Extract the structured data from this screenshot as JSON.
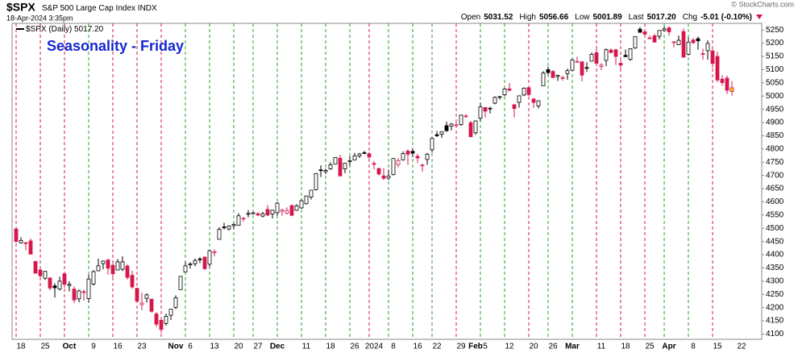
{
  "header": {
    "symbol": "$SPX",
    "name": "S&P 500 Large Cap Index",
    "exchange": "INDX",
    "date": "18-Apr-2024 3:35pm",
    "copyright": "© StockCharts.com",
    "quote": [
      {
        "label": "Open",
        "value": "5031.52"
      },
      {
        "label": "High",
        "value": "5056.66"
      },
      {
        "label": "Low",
        "value": "5001.89"
      },
      {
        "label": "Last",
        "value": "5017.20"
      },
      {
        "label": "Chg",
        "value": "-5.01 (-0.10%)"
      }
    ]
  },
  "chart_data": {
    "type": "candlestick",
    "title": "Seasonality - Friday",
    "series_name": "$SPX (Daily)",
    "last_label": "5017.20",
    "up_color": "#000000",
    "down_color": "#d6174c",
    "last_color": "#f2d21b",
    "friday_up_color": "#2e9e2e",
    "friday_down_color": "#d6174c",
    "categories": [
      null,
      "18",
      null,
      null,
      null,
      null,
      "25",
      null,
      null,
      null,
      null,
      "Oct",
      null,
      null,
      null,
      null,
      "9",
      null,
      null,
      null,
      null,
      "16",
      null,
      null,
      null,
      null,
      "23",
      null,
      null,
      null,
      null,
      null,
      null,
      "Nov",
      null,
      null,
      "6",
      null,
      null,
      null,
      null,
      "13",
      null,
      null,
      null,
      null,
      "20",
      null,
      null,
      null,
      "27",
      null,
      null,
      null,
      "Dec",
      null,
      null,
      null,
      null,
      null,
      "11",
      null,
      null,
      null,
      null,
      "18",
      null,
      null,
      null,
      null,
      "26",
      null,
      null,
      null,
      "2024",
      null,
      null,
      null,
      "8",
      null,
      null,
      null,
      null,
      "16",
      null,
      null,
      null,
      "22",
      null,
      null,
      null,
      null,
      "29",
      null,
      null,
      "Feb",
      null,
      "5",
      null,
      null,
      null,
      null,
      "12",
      null,
      null,
      null,
      null,
      "20",
      null,
      null,
      null,
      "26",
      null,
      null,
      null,
      "Mar",
      null,
      null,
      null,
      null,
      null,
      "11",
      null,
      null,
      null,
      null,
      "18",
      null,
      null,
      null,
      null,
      "25",
      null,
      null,
      null,
      "Apr",
      null,
      null,
      null,
      null,
      "8",
      null,
      null,
      null,
      null,
      "15",
      null,
      null,
      null,
      null,
      "22",
      null,
      null,
      null
    ],
    "open": [
      4497,
      4445,
      4445,
      4452,
      4375,
      4342,
      4311,
      4312,
      4282,
      4270,
      4328,
      4284,
      4270,
      4233,
      4260,
      4234,
      4289,
      4339,
      4366,
      4380,
      4360,
      4342,
      4345,
      4357,
      4322,
      4273,
      4211,
      4235,
      4232,
      4176,
      4152,
      4140,
      4171,
      4201,
      4268,
      4335,
      4365,
      4366,
      4384,
      4391,
      4364,
      4407,
      4458,
      4505,
      4497,
      4510,
      4511,
      4538,
      4553,
      4555,
      4555,
      4546,
      4571,
      4554,
      4559,
      4564,
      4557,
      4586,
      4568,
      4577,
      4593,
      4618,
      4646,
      4721,
      4714,
      4725,
      4743,
      4765,
      4725,
      4753,
      4758,
      4774,
      4786,
      4782,
      4745,
      4726,
      4698,
      4690,
      4703,
      4741,
      4759,
      4792,
      4791,
      4772,
      4739,
      4760,
      4797,
      4854,
      4856,
      4888,
      4886,
      4888,
      4892,
      4925,
      4899,
      4861,
      4916,
      4957,
      4951,
      4973,
      4996,
      5005,
      5027,
      4967,
      4976,
      5004,
      5032,
      4989,
      4963,
      5039,
      5100,
      5093,
      5074,
      5068,
      5085,
      5098,
      5131,
      5130,
      5108,
      5132,
      5164,
      5112,
      5135,
      5174,
      5175,
      5124,
      5154,
      5139,
      5182,
      5253,
      5243,
      5220,
      5228,
      5226,
      5248,
      5258,
      5204,
      5194,
      5244,
      5158,
      5212,
      5217,
      5158,
      5172,
      5171,
      5150,
      5064,
      5068,
      5031.52,
      null,
      null,
      null,
      null,
      null
    ],
    "high": [
      4497,
      4466,
      4449,
      4461,
      4375,
      4357,
      4339,
      4314,
      4292,
      4317,
      4333,
      4300,
      4281,
      4268,
      4268,
      4324,
      4341,
      4385,
      4378,
      4385,
      4377,
      4384,
      4394,
      4364,
      4339,
      4275,
      4256,
      4254,
      4232,
      4183,
      4156,
      4177,
      4194,
      4246,
      4319,
      4374,
      4372,
      4386,
      4391,
      4393,
      4418,
      4421,
      4504,
      4521,
      4511,
      4520,
      4557,
      4542,
      4569,
      4560,
      4561,
      4562,
      4587,
      4570,
      4599,
      4574,
      4579,
      4590,
      4591,
      4610,
      4623,
      4644,
      4709,
      4738,
      4726,
      4749,
      4768,
      4778,
      4748,
      4772,
      4785,
      4785,
      4793,
      4788,
      4754,
      4729,
      4727,
      4722,
      4764,
      4766,
      4791,
      4799,
      4802,
      4782,
      4744,
      4785,
      4842,
      4868,
      4866,
      4903,
      4898,
      4907,
      4929,
      4932,
      4906,
      4907,
      4975,
      4957,
      4960,
      4999,
      5000,
      5031,
      5049,
      4971,
      5002,
      5033,
      5039,
      4993,
      4984,
      5094,
      5111,
      5098,
      5081,
      5077,
      5104,
      5140,
      5149,
      5130,
      5128,
      5165,
      5190,
      5125,
      5180,
      5180,
      5179,
      5136,
      5176,
      5180,
      5225,
      5261,
      5246,
      5229,
      5235,
      5249,
      5264,
      5264,
      5208,
      5229,
      5256,
      5222,
      5219,
      5225,
      5179,
      5211,
      5176,
      5168,
      5079,
      5077,
      5056.66,
      null,
      null,
      null,
      null,
      null
    ],
    "low": [
      4447,
      4442,
      4417,
      4402,
      4329,
      4316,
      4305,
      4265,
      4238,
      4265,
      4275,
      4261,
      4217,
      4220,
      4226,
      4219,
      4284,
      4339,
      4345,
      4325,
      4311,
      4342,
      4338,
      4306,
      4271,
      4223,
      4190,
      4219,
      4181,
      4127,
      4104,
      4132,
      4153,
      4194,
      4268,
      4334,
      4347,
      4356,
      4368,
      4343,
      4353,
      4394,
      4458,
      4495,
      4492,
      4496,
      4511,
      4525,
      4541,
      4552,
      4546,
      4541,
      4546,
      4537,
      4547,
      4547,
      4552,
      4546,
      4566,
      4574,
      4590,
      4609,
      4643,
      4694,
      4705,
      4721,
      4743,
      4697,
      4708,
      4736,
      4758,
      4766,
      4780,
      4751,
      4723,
      4700,
      4683,
      4682,
      4700,
      4731,
      4756,
      4740,
      4769,
      4747,
      4714,
      4740,
      4786,
      4845,
      4842,
      4865,
      4870,
      4881,
      4887,
      4917,
      4846,
      4853,
      4906,
      4919,
      4934,
      4969,
      4987,
      4999,
      5018,
      4920,
      4956,
      5000,
      4999,
      4955,
      4953,
      5039,
      5081,
      5069,
      5057,
      5058,
      5062,
      5094,
      5127,
      5056,
      5091,
      5131,
      5117,
      5098,
      5113,
      5161,
      5118,
      5104,
      5148,
      5133,
      5179,
      5241,
      5229,
      5216,
      5203,
      5214,
      5245,
      5229,
      5184,
      5194,
      5146,
      5154,
      5197,
      5175,
      5138,
      5138,
      5107,
      5053,
      5039,
      5008,
      5001.89,
      null,
      null,
      null,
      null,
      null
    ],
    "close": [
      4450,
      4454,
      4444,
      4402,
      4330,
      4320,
      4337,
      4274,
      4275,
      4300,
      4288,
      4288,
      4229,
      4263,
      4258,
      4308,
      4336,
      4358,
      4376,
      4349,
      4328,
      4373,
      4373,
      4314,
      4278,
      4224,
      4217,
      4248,
      4186,
      4137,
      4117,
      4167,
      4194,
      4237,
      4318,
      4358,
      4365,
      4378,
      4383,
      4347,
      4415,
      4411,
      4496,
      4503,
      4508,
      4514,
      4547,
      4538,
      4556,
      4559,
      4550,
      4555,
      4550,
      4568,
      4595,
      4569,
      4567,
      4549,
      4585,
      4604,
      4622,
      4644,
      4707,
      4719,
      4719,
      4740,
      4768,
      4698,
      4746,
      4755,
      4774,
      4781,
      4783,
      4770,
      4743,
      4705,
      4689,
      4697,
      4764,
      4756,
      4783,
      4780,
      4784,
      4766,
      4739,
      4780,
      4840,
      4850,
      4865,
      4869,
      4894,
      4891,
      4928,
      4925,
      4846,
      4906,
      4959,
      4943,
      4954,
      4995,
      4998,
      5027,
      5022,
      4953,
      5001,
      5030,
      5006,
      4976,
      4982,
      5087,
      5089,
      5070,
      5078,
      5070,
      5096,
      5137,
      5131,
      5079,
      5105,
      5158,
      5124,
      5117,
      5175,
      5165,
      5150,
      5117,
      5149,
      5179,
      5225,
      5241,
      5234,
      5218,
      5204,
      5248,
      5254,
      5243,
      5205,
      5211,
      5147,
      5204,
      5202,
      5209,
      5161,
      5199,
      5123,
      5061,
      5051,
      5022,
      5017.2,
      null,
      null,
      null,
      null,
      null
    ],
    "ylim": [
      4080,
      5275
    ],
    "yticks": [
      4100,
      4150,
      4200,
      4250,
      4300,
      4350,
      4400,
      4450,
      4500,
      4550,
      4600,
      4650,
      4700,
      4750,
      4800,
      4850,
      4900,
      4950,
      5000,
      5050,
      5100,
      5150,
      5200,
      5250
    ]
  }
}
